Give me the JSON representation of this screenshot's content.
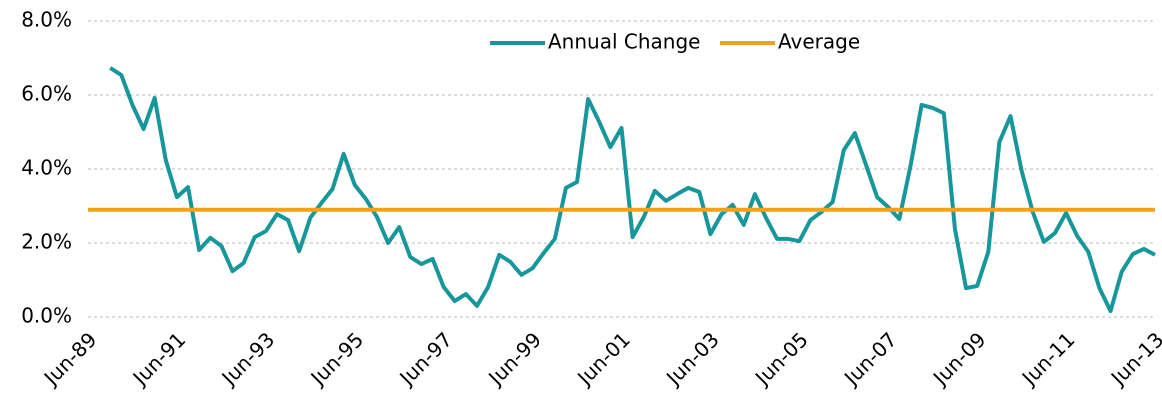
{
  "chart_data": {
    "type": "line",
    "categories": [
      "Jun-89",
      null,
      null,
      null,
      null,
      null,
      null,
      null,
      "Jun-91",
      null,
      null,
      null,
      null,
      null,
      null,
      null,
      "Jun-93",
      null,
      null,
      null,
      null,
      null,
      null,
      null,
      "Jun-95",
      null,
      null,
      null,
      null,
      null,
      null,
      null,
      "Jun-97",
      null,
      null,
      null,
      null,
      null,
      null,
      null,
      "Jun-99",
      null,
      null,
      null,
      null,
      null,
      null,
      null,
      "Jun-01",
      null,
      null,
      null,
      null,
      null,
      null,
      null,
      "Jun-03",
      null,
      null,
      null,
      null,
      null,
      null,
      null,
      "Jun-05",
      null,
      null,
      null,
      null,
      null,
      null,
      null,
      "Jun-07",
      null,
      null,
      null,
      null,
      null,
      null,
      null,
      "Jun-09",
      null,
      null,
      null,
      null,
      null,
      null,
      null,
      "Jun-11",
      null,
      null,
      null,
      null,
      null,
      null,
      null,
      "Jun-13"
    ],
    "series": [
      {
        "name": "Annual Change",
        "color": "#17979b",
        "values": [
          null,
          null,
          6.73,
          6.54,
          5.73,
          5.08,
          5.92,
          4.24,
          3.24,
          3.51,
          1.81,
          2.14,
          1.92,
          1.24,
          1.46,
          2.16,
          2.32,
          2.78,
          2.62,
          1.78,
          2.68,
          3.08,
          3.46,
          4.41,
          3.57,
          3.19,
          2.7,
          2.0,
          2.43,
          1.62,
          1.43,
          1.57,
          0.81,
          0.43,
          0.62,
          0.3,
          0.81,
          1.68,
          1.49,
          1.14,
          1.32,
          1.73,
          2.11,
          3.49,
          3.65,
          5.89,
          5.27,
          4.59,
          5.11,
          2.16,
          2.7,
          3.41,
          3.14,
          3.32,
          3.49,
          3.38,
          2.24,
          2.78,
          3.03,
          2.49,
          3.32,
          2.68,
          2.11,
          2.11,
          2.05,
          2.62,
          2.84,
          3.11,
          4.51,
          4.97,
          4.11,
          3.24,
          2.97,
          2.65,
          4.08,
          5.73,
          5.65,
          5.51,
          2.38,
          0.78,
          0.84,
          1.76,
          4.73,
          5.43,
          3.95,
          2.84,
          2.03,
          2.27,
          2.81,
          2.19,
          1.76,
          0.78,
          0.16,
          1.22,
          1.7,
          1.84,
          1.68
        ]
      }
    ],
    "reference_lines": [
      {
        "name": "Average",
        "color": "#f5a01a",
        "value": 2.9
      }
    ],
    "ylim": [
      0,
      8
    ],
    "yticks": [
      {
        "value": 0,
        "label": "0.0%"
      },
      {
        "value": 2,
        "label": "2.0%"
      },
      {
        "value": 4,
        "label": "4.0%"
      },
      {
        "value": 6,
        "label": "6.0%"
      },
      {
        "value": 8,
        "label": "8.0%"
      }
    ],
    "grid": true,
    "legend": "top"
  }
}
